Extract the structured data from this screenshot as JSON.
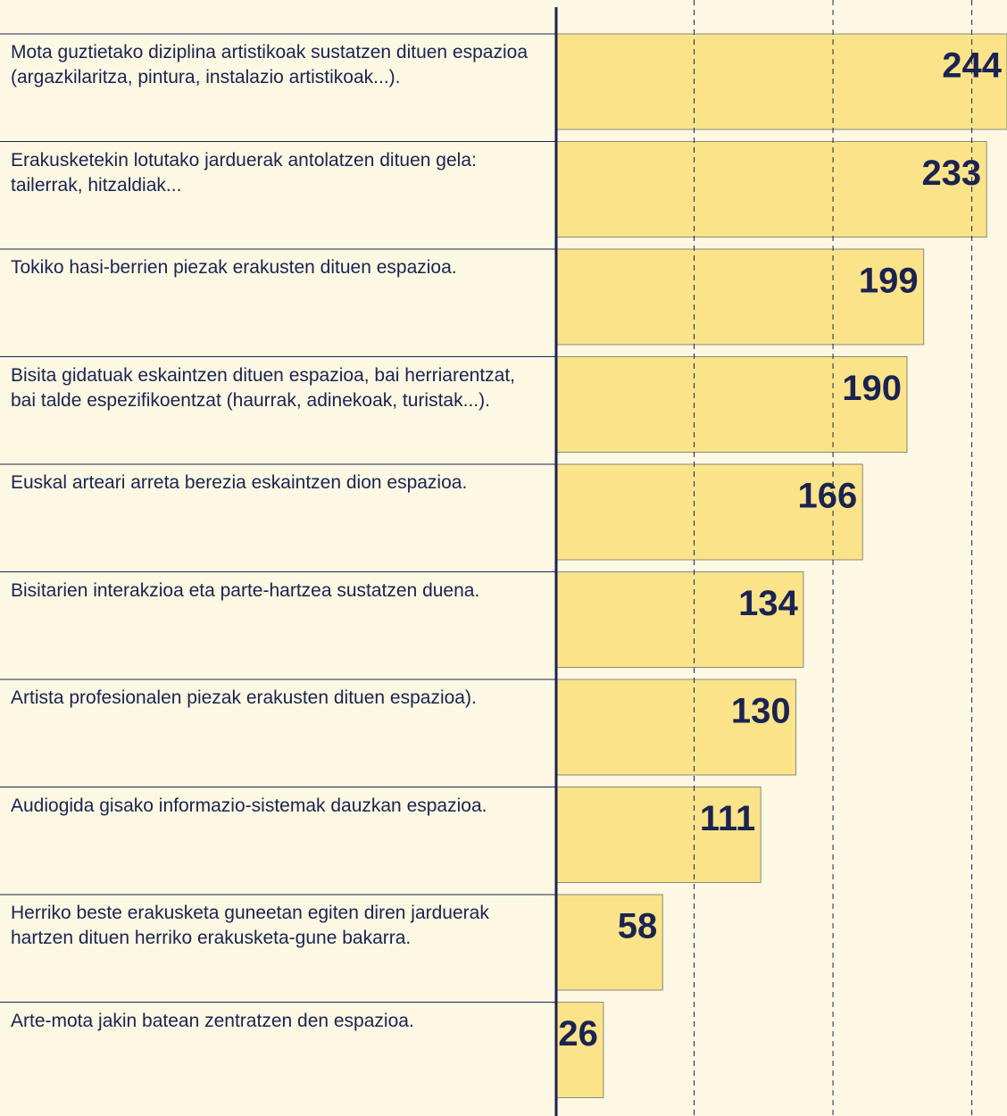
{
  "chart_data": {
    "type": "bar",
    "orientation": "horizontal",
    "categories": [
      "Mota guztietako diziplina artistikoak sustatzen dituen espazioa (argazkilaritza, pintura, instalazio artistikoak...).",
      "Erakusketekin lotutako jarduerak antolatzen dituen gela: tailerrak, hitzaldiak...",
      "Tokiko hasi-berrien piezak erakusten dituen espazioa.",
      "Bisita gidatuak eskaintzen dituen espazioa, bai herriarentzat, bai talde espezifikoentzat (haurrak, adinekoak, turistak...).",
      "Euskal arteari arreta berezia eskaintzen dion espazioa.",
      "Bisitarien interakzioa eta parte-hartzea sustatzen duena.",
      "Artista profesionalen piezak erakusten dituen espazioa).",
      "Audiogida gisako informazio-sistemak dauzkan espazioa.",
      "Herriko beste erakusketa guneetan egiten diren jarduerak hartzen dituen herriko erakusketa-gune bakarra.",
      "Arte-mota jakin batean zentratzen den espazioa."
    ],
    "values": [
      244,
      233,
      199,
      190,
      166,
      134,
      130,
      111,
      58,
      26
    ],
    "color": "#fbe38a",
    "xlim": [
      0,
      244
    ],
    "xticks": [
      75,
      150,
      225
    ],
    "grid": true
  }
}
